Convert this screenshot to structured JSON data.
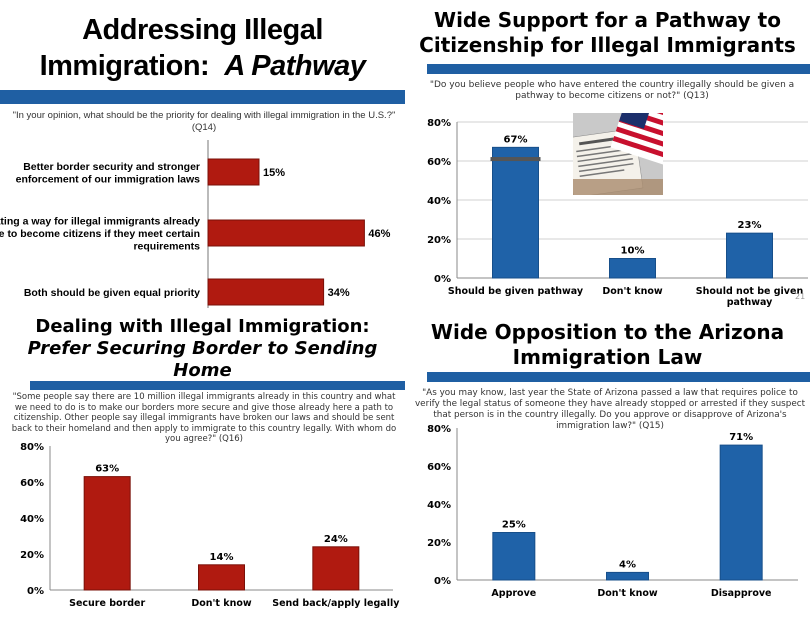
{
  "panels": {
    "p1": {
      "title_line1": "Addressing Illegal",
      "title_line2_regular": "Immigration:  ",
      "title_line2_italic": "A Pathway",
      "question": "\"In your opinion, what should be the priority for dealing with illegal immigration in the U.S.?\" (Q14)"
    },
    "p2": {
      "title_line1": "Wide Support for a Pathway to",
      "title_line2": "Citizenship for Illegal Immigrants",
      "question": "\"Do you believe people who have entered the country illegally should be given a pathway to become citizens or not?\" (Q13)",
      "page_number": "21"
    },
    "p3": {
      "title_line1": "Dealing with Illegal Immigration:",
      "title_line2": "Prefer Securing Border to Sending",
      "title_line3": "Home",
      "question": "\"Some people say there are 10 million illegal immigrants already in this country and what we need to do is to make our borders more secure and give those already here a path to citizenship.  Other people say illegal immigrants have broken our laws and should be sent back to their homeland and then apply to immigrate to this country legally.  With whom do you agree?\" (Q16)"
    },
    "p4": {
      "title_line1": "Wide Opposition to the Arizona",
      "title_line2": "Immigration Law",
      "question": "\"As you may know, last year the State of Arizona passed a law that requires police to verify the legal status of someone they have already stopped or arrested if they suspect that person is in the country illegally.  Do you approve or disapprove of Arizona's immigration law?\" (Q15)"
    }
  },
  "colors": {
    "band": "#1f5fa3",
    "blue_bar": "#1f62a8",
    "red_bar": "#b01a10",
    "red_bar_dark": "#7a1008"
  },
  "chart_data": [
    {
      "type": "bar",
      "orientation": "horizontal",
      "categories": [
        [
          "Better border security and stronger",
          "enforcement of our immigration laws"
        ],
        [
          "Creating a way for illegal immigrants already",
          "here to become citizens if they meet certain",
          "requirements"
        ],
        [
          "Both should be given equal priority"
        ]
      ],
      "values": [
        15,
        46,
        34
      ],
      "value_labels": [
        "15%",
        "46%",
        "34%"
      ],
      "xlim": [
        0,
        50
      ]
    },
    {
      "type": "bar",
      "categories": [
        [
          "Should be given pathway"
        ],
        [
          "Don't know"
        ],
        [
          "Should not be given",
          "pathway"
        ]
      ],
      "values": [
        67,
        10,
        23
      ],
      "value_labels": [
        "67%",
        "10%",
        "23%"
      ],
      "ylim": [
        0,
        80
      ],
      "yticks": [
        "0%",
        "20%",
        "40%",
        "60%",
        "80%"
      ],
      "grid": true
    },
    {
      "type": "bar",
      "categories": [
        [
          "Secure border"
        ],
        [
          "Don't know"
        ],
        [
          "Send back/apply legally"
        ]
      ],
      "values": [
        63,
        14,
        24
      ],
      "value_labels": [
        "63%",
        "14%",
        "24%"
      ],
      "ylim": [
        0,
        80
      ],
      "yticks": [
        "0%",
        "20%",
        "40%",
        "60%",
        "80%"
      ],
      "grid": false
    },
    {
      "type": "bar",
      "categories": [
        [
          "Approve"
        ],
        [
          "Don't know"
        ],
        [
          "Disapprove"
        ]
      ],
      "values": [
        25,
        4,
        71
      ],
      "value_labels": [
        "25%",
        "4%",
        "71%"
      ],
      "ylim": [
        0,
        80
      ],
      "yticks": [
        "0%",
        "20%",
        "40%",
        "60%",
        "80%"
      ],
      "grid": false
    }
  ]
}
